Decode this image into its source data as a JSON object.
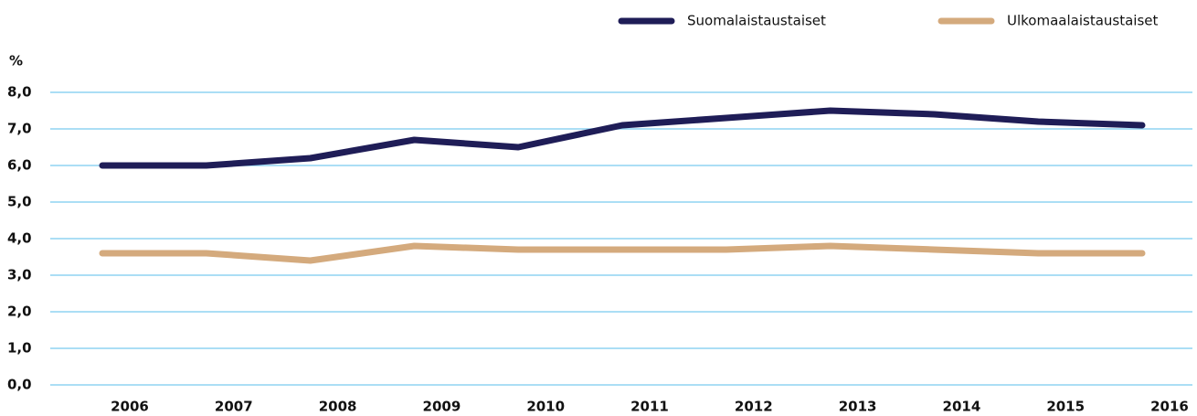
{
  "chart_data": {
    "type": "line",
    "ylabel": "%",
    "categories": [
      "2006",
      "2007",
      "2008",
      "2009",
      "2010",
      "2011",
      "2012",
      "2013",
      "2014",
      "2015",
      "2016"
    ],
    "series": [
      {
        "name": "Suomalaistaustaiset",
        "color": "#1f1d57",
        "values": [
          6.0,
          6.0,
          6.2,
          6.7,
          6.5,
          7.1,
          7.3,
          7.5,
          7.4,
          7.2,
          7.1
        ]
      },
      {
        "name": "Ulkomaalaistaustaiset",
        "color": "#d4aa7d",
        "values": [
          3.6,
          3.6,
          3.4,
          3.8,
          3.7,
          3.7,
          3.7,
          3.8,
          3.7,
          3.6,
          3.6
        ]
      }
    ],
    "ylim": [
      0,
      8
    ],
    "yticks": [
      {
        "value": 0,
        "label": "0,0"
      },
      {
        "value": 1,
        "label": "1,0"
      },
      {
        "value": 2,
        "label": "2,0"
      },
      {
        "value": 3,
        "label": "3,0"
      },
      {
        "value": 4,
        "label": "4,0"
      },
      {
        "value": 5,
        "label": "5,0"
      },
      {
        "value": 6,
        "label": "6,0"
      },
      {
        "value": 7,
        "label": "7,0"
      },
      {
        "value": 8,
        "label": "8,0"
      }
    ],
    "grid": true,
    "grid_color": "#8fd3f2",
    "legend": "top-right"
  }
}
